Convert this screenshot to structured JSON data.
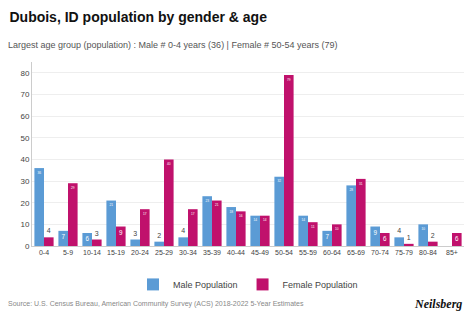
{
  "chart_data": {
    "type": "bar",
    "title": "Dubois, ID population by gender & age",
    "subtitle": "Largest age group (population) : Male # 0-4 years (36) | Female # 50-54 years (79)",
    "categories": [
      "0-4",
      "5-9",
      "10-14",
      "15-19",
      "20-24",
      "25-29",
      "30-34",
      "35-39",
      "40-44",
      "45-49",
      "50-54",
      "55-59",
      "60-64",
      "65-69",
      "70-74",
      "75-79",
      "80-84",
      "85+"
    ],
    "series": [
      {
        "name": "Male Population",
        "color": "#5b9bd5",
        "values": [
          36,
          7,
          6,
          21,
          3,
          2,
          4,
          23,
          18,
          14,
          32,
          14,
          7,
          28,
          9,
          4,
          10,
          0
        ]
      },
      {
        "name": "Female Population",
        "color": "#c0116c",
        "values": [
          4,
          29,
          3,
          9,
          17,
          40,
          17,
          21,
          16,
          14,
          79,
          11,
          10,
          31,
          6,
          1,
          2,
          6
        ]
      }
    ],
    "ylim": [
      0,
      85
    ],
    "yticks": [
      0,
      10,
      20,
      30,
      40,
      50,
      60,
      70,
      80
    ],
    "grid": true,
    "legend": "bottom",
    "data_labels": true,
    "annotations": [
      "Source: U.S. Census Bureau, American Community Survey (ACS) 2018-2022 5-Year Estimates",
      "Neilsberg"
    ]
  }
}
